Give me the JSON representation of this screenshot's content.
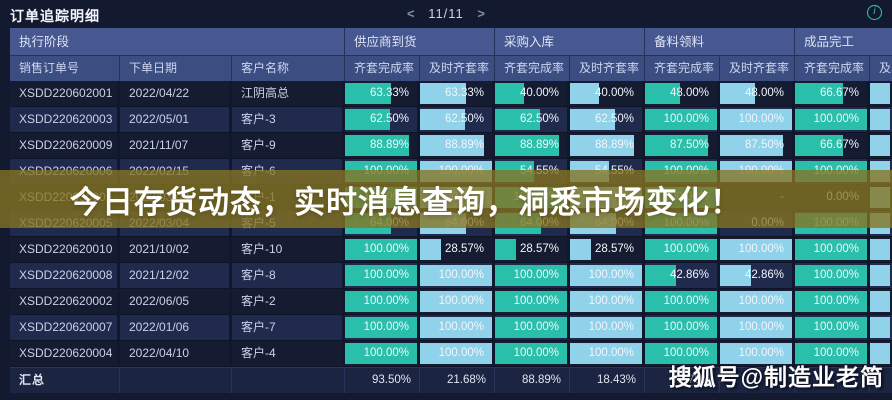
{
  "window": {
    "title": "订单追踪明细",
    "pager": {
      "prev": "<",
      "label": "11/11",
      "next": ">"
    },
    "info_icon": "i"
  },
  "table": {
    "group_headers": [
      "执行阶段",
      "供应商到货",
      "采购入库",
      "备料领料",
      "成品完工"
    ],
    "columns": [
      "销售订单号",
      "下单日期",
      "客户名称",
      "齐套完成率",
      "及时齐套率",
      "齐套完成率",
      "及时齐套率",
      "齐套完成率",
      "及时齐套率",
      "齐套完成率",
      "及时齐套率"
    ],
    "rows": [
      {
        "order": "XSDD220602001",
        "date": "2022/04/22",
        "customer": "江阴高总",
        "metrics": [
          "63.33%",
          "63.33%",
          "40.00%",
          "40.00%",
          "48.00%",
          "48.00%",
          "66.67%",
          ""
        ]
      },
      {
        "order": "XSDD220620003",
        "date": "2022/05/01",
        "customer": "客户-3",
        "metrics": [
          "62.50%",
          "62.50%",
          "62.50%",
          "62.50%",
          "100.00%",
          "100.00%",
          "100.00%",
          ""
        ]
      },
      {
        "order": "XSDD220620009",
        "date": "2021/11/07",
        "customer": "客户-9",
        "metrics": [
          "88.89%",
          "88.89%",
          "88.89%",
          "88.89%",
          "87.50%",
          "87.50%",
          "66.67%",
          ""
        ]
      },
      {
        "order": "XSDD220620006",
        "date": "2022/02/15",
        "customer": "客户-6",
        "metrics": [
          "100.00%",
          "100.00%",
          "54.55%",
          "54.55%",
          "100.00%",
          "100.00%",
          "100.00%",
          ""
        ]
      },
      {
        "order": "XSDD220630001",
        "date": "2022/03/03",
        "customer": "客户-1",
        "metrics": [
          "100.00%",
          "100.00%",
          "100.00%",
          "100.00%",
          "100.00%",
          "-",
          "0.00%",
          ""
        ]
      },
      {
        "order": "XSDD220620005",
        "date": "2022/03/04",
        "customer": "客户-5",
        "metrics": [
          "64.00%",
          "64.00%",
          "64.00%",
          "64.00%",
          "100.00%",
          "0.00%",
          "100.00%",
          ""
        ]
      },
      {
        "order": "XSDD220620010",
        "date": "2021/10/02",
        "customer": "客户-10",
        "metrics": [
          "100.00%",
          "28.57%",
          "28.57%",
          "28.57%",
          "100.00%",
          "100.00%",
          "100.00%",
          ""
        ]
      },
      {
        "order": "XSDD220620008",
        "date": "2021/12/02",
        "customer": "客户-8",
        "metrics": [
          "100.00%",
          "100.00%",
          "100.00%",
          "100.00%",
          "42.86%",
          "42.86%",
          "100.00%",
          ""
        ]
      },
      {
        "order": "XSDD220620002",
        "date": "2022/06/05",
        "customer": "客户-2",
        "metrics": [
          "100.00%",
          "100.00%",
          "100.00%",
          "100.00%",
          "100.00%",
          "100.00%",
          "100.00%",
          ""
        ]
      },
      {
        "order": "XSDD220620007",
        "date": "2022/01/06",
        "customer": "客户-7",
        "metrics": [
          "100.00%",
          "100.00%",
          "100.00%",
          "100.00%",
          "100.00%",
          "100.00%",
          "100.00%",
          ""
        ]
      },
      {
        "order": "XSDD220620004",
        "date": "2022/04/10",
        "customer": "客户-4",
        "metrics": [
          "100.00%",
          "100.00%",
          "100.00%",
          "100.00%",
          "100.00%",
          "100.00%",
          "100.00%",
          ""
        ]
      }
    ],
    "summary": {
      "label": "汇总",
      "metrics": [
        "93.50%",
        "21.68%",
        "88.89%",
        "18.43%",
        "77.78%",
        "",
        "",
        ""
      ]
    }
  },
  "overlay_banner": {
    "text": "今日存货动态，实时消息查询，洞悉市场变化！",
    "bg": "#867521"
  },
  "watermark": {
    "text": "搜狐号@制造业老简"
  },
  "colors": {
    "bar_complete": "#2abfab",
    "bar_ontime": "#8fd2e9",
    "header": "#46588f",
    "subheader": "#3c4d82",
    "row_odd": "#151c31",
    "row_even": "#202a4c",
    "info_accent": "#35c9a0"
  }
}
